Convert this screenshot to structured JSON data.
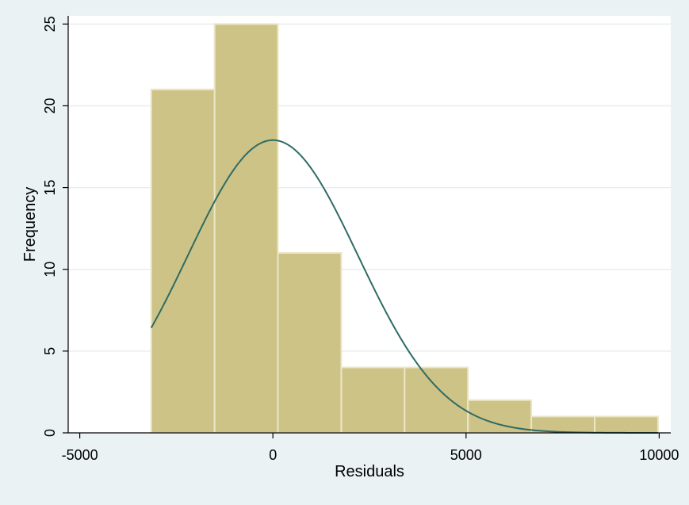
{
  "chart_data": {
    "type": "bar",
    "subtype": "histogram",
    "xlabel": "Residuals",
    "ylabel": "Frequency",
    "xlim": [
      -5300,
      10300
    ],
    "ylim": [
      0,
      25.5
    ],
    "x_ticks": [
      -5000,
      0,
      5000,
      10000
    ],
    "y_ticks": [
      0,
      5,
      10,
      15,
      20,
      25
    ],
    "grid": true,
    "bins": [
      {
        "x0": -3150,
        "x1": -1510,
        "count": 21
      },
      {
        "x0": -1510,
        "x1": 130,
        "count": 25
      },
      {
        "x0": 130,
        "x1": 1770,
        "count": 11
      },
      {
        "x0": 1770,
        "x1": 3410,
        "count": 4
      },
      {
        "x0": 3410,
        "x1": 5050,
        "count": 4
      },
      {
        "x0": 5050,
        "x1": 6690,
        "count": 2
      },
      {
        "x0": 6690,
        "x1": 8330,
        "count": 1
      },
      {
        "x0": 8330,
        "x1": 9970,
        "count": 1
      }
    ],
    "normal_curve": {
      "mean": 0,
      "sd": 2200,
      "peak": 17.9,
      "x_start": -3150,
      "x_end": 9970
    },
    "colors": {
      "background": "#eaf2f3",
      "plot_area": "#ffffff",
      "bar_fill": "#cdc386",
      "bar_stroke": "#ebe6c7",
      "curve": "#2e6b65",
      "grid": "#e8eef0"
    }
  }
}
